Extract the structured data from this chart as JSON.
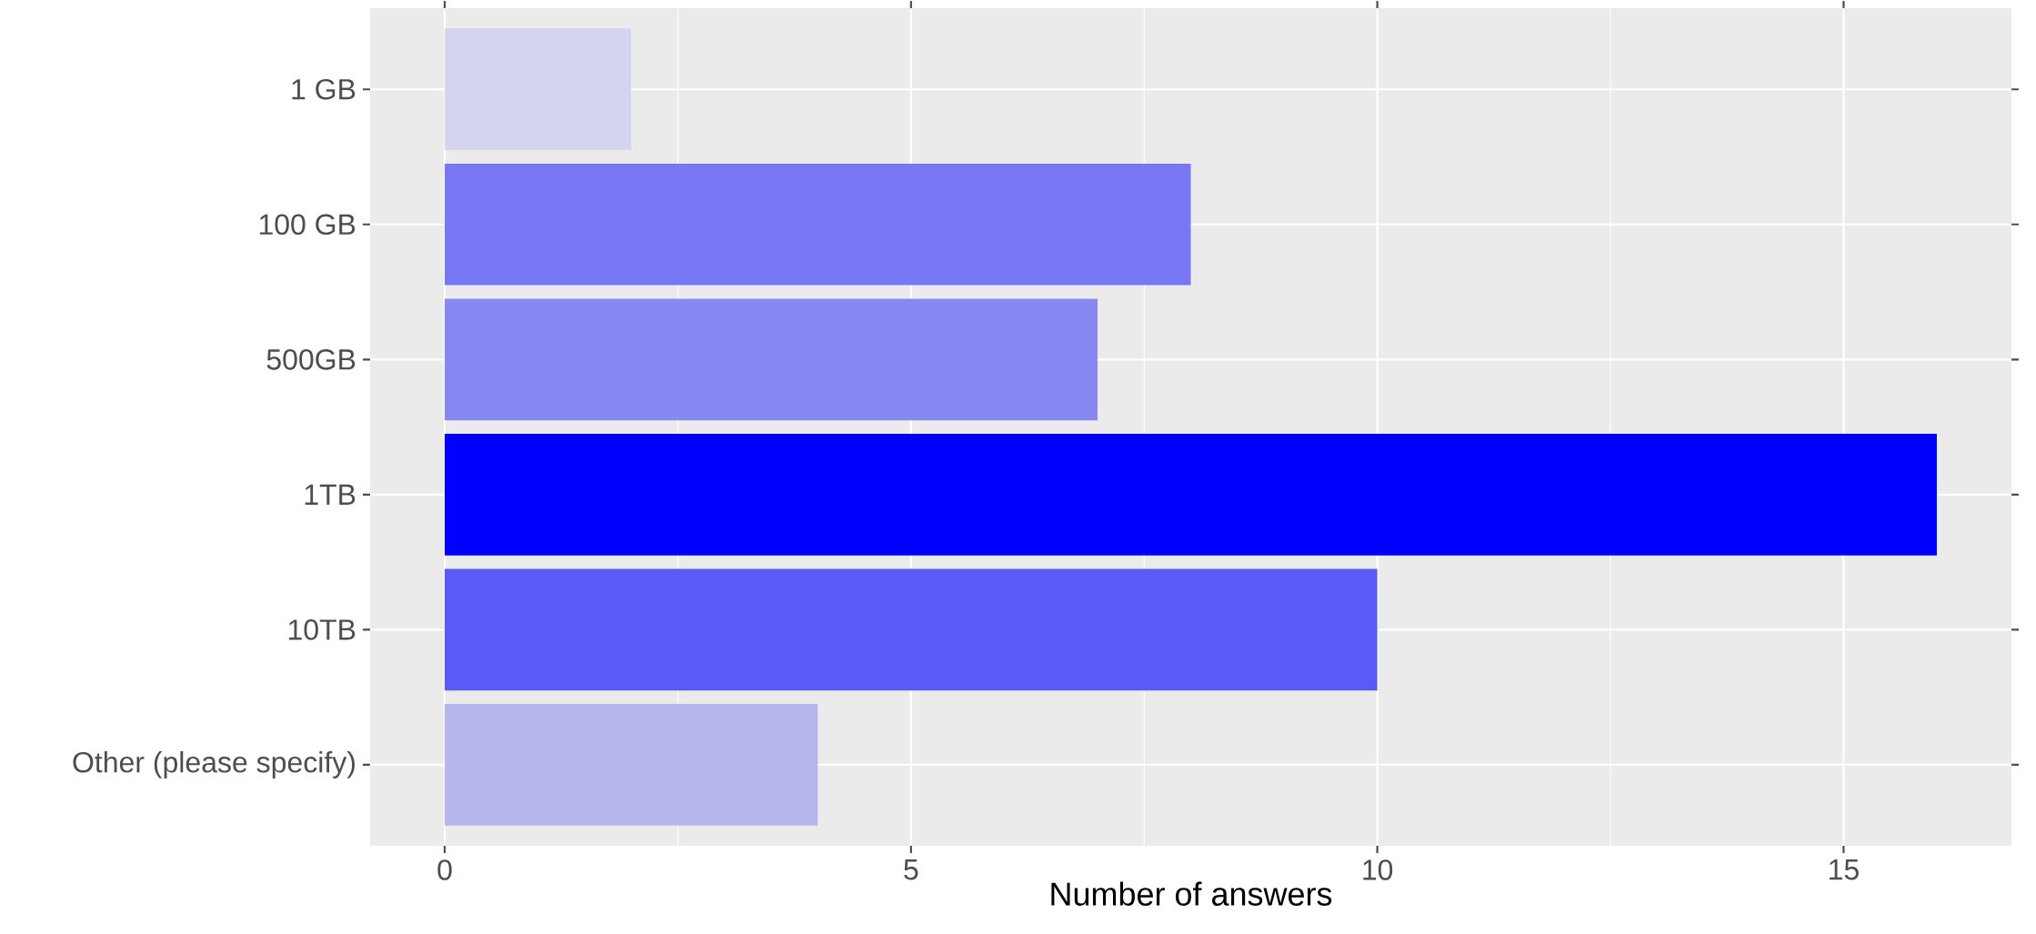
{
  "chart_data": {
    "type": "bar",
    "orientation": "horizontal",
    "xlabel": "Number of answers",
    "categories": [
      "1 GB",
      "100 GB",
      "500GB",
      "1TB",
      "10TB",
      "Other (please specify)"
    ],
    "values": [
      2,
      8,
      7,
      16,
      10,
      4
    ],
    "colors": [
      "#d4d4f0",
      "#7878f4",
      "#8888f2",
      "#0000ff",
      "#5a5af6",
      "#b6b6ee"
    ],
    "xlim": [
      -0.8,
      16.8
    ],
    "xticks": [
      0,
      5,
      10,
      15
    ],
    "grid": true
  }
}
